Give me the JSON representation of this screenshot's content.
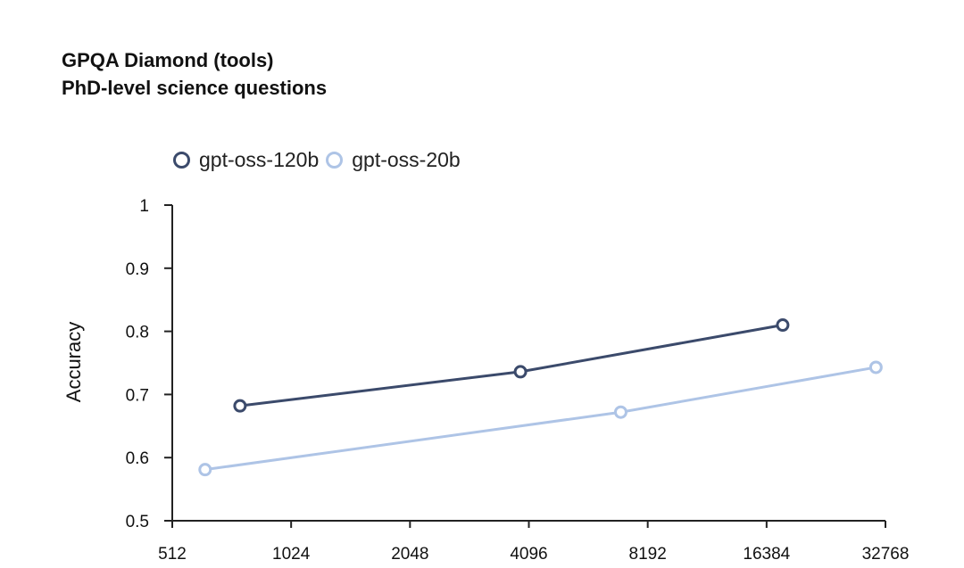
{
  "chart_data": {
    "type": "line",
    "title": "GPQA Diamond (tools)",
    "subtitle": "PhD-level science questions",
    "xlabel": "",
    "ylabel": "Accuracy",
    "x_scale": "log2",
    "xlim": [
      512,
      32768
    ],
    "ylim": [
      0.5,
      1.0
    ],
    "x_ticks": [
      512,
      1024,
      2048,
      4096,
      8192,
      16384,
      32768
    ],
    "y_ticks": [
      0.5,
      0.6,
      0.7,
      0.8,
      0.9,
      1.0
    ],
    "y_tick_labels": [
      "0.5",
      "0.6",
      "0.7",
      "0.8",
      "0.9",
      "1"
    ],
    "grid": false,
    "legend_position": "top-left",
    "series": [
      {
        "name": "gpt-oss-120b",
        "color": "#3b4a6b",
        "x": [
          760,
          3900,
          18000
        ],
        "y": [
          0.682,
          0.736,
          0.81
        ]
      },
      {
        "name": "gpt-oss-20b",
        "color": "#aec4e6",
        "x": [
          620,
          7000,
          31000
        ],
        "y": [
          0.581,
          0.672,
          0.743
        ]
      }
    ]
  }
}
